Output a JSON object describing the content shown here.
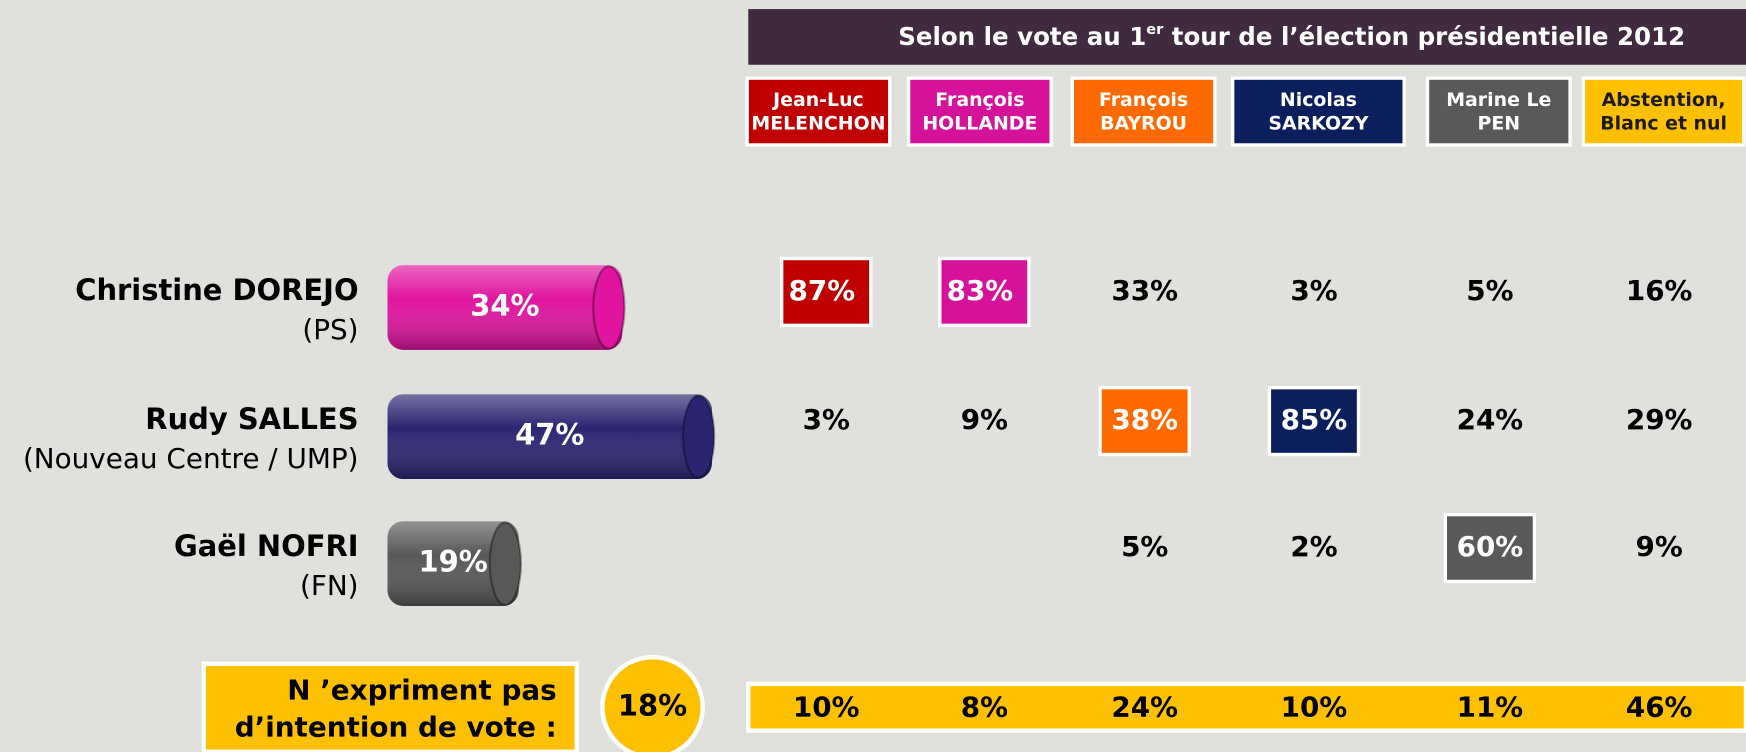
{
  "chart_data": {
    "type": "bar",
    "categories": [
      "Christine DOREJO",
      "Rudy SALLES",
      "Gaël NOFRI"
    ],
    "parties": [
      "(PS)",
      "(Nouveau Centre / UMP)",
      "(FN)"
    ],
    "values": [
      34,
      47,
      19
    ],
    "value_labels": [
      "34%",
      "47%",
      "19%"
    ],
    "colors": [
      "#e0149f",
      "#2b2571",
      "#585858"
    ]
  },
  "table": {
    "title": [
      "Selon le vote au 1",
      "er",
      " tour de l’élection présidentielle 2012"
    ],
    "columns": [
      {
        "label": [
          "Jean-Luc",
          "MELENCHON"
        ],
        "color": "#c00000",
        "text_color": "#ffffff"
      },
      {
        "label": [
          "François",
          "HOLLANDE"
        ],
        "color": "#d6129a",
        "text_color": "#ffffff"
      },
      {
        "label": [
          "François",
          "BAYROU"
        ],
        "color": "#ff6a00",
        "text_color": "#ffffff"
      },
      {
        "label": [
          "Nicolas",
          "SARKOZY"
        ],
        "color": "#0b1f5c",
        "text_color": "#ffffff"
      },
      {
        "label": [
          "Marine Le",
          "PEN"
        ],
        "color": "#595959",
        "text_color": "#ffffff"
      },
      {
        "label": [
          "Abstention,",
          "Blanc et nul"
        ],
        "color": "#ffc000",
        "text_color": "#1a1a1a"
      }
    ],
    "rows": [
      [
        "87%",
        "83%",
        "33%",
        "3%",
        "5%",
        "16%"
      ],
      [
        "3%",
        "9%",
        "38%",
        "85%",
        "24%",
        "29%"
      ],
      [
        null,
        null,
        "5%",
        "2%",
        "60%",
        "9%"
      ]
    ],
    "highlight": [
      [
        true,
        true,
        false,
        false,
        false,
        false
      ],
      [
        false,
        false,
        true,
        true,
        false,
        false
      ],
      [
        false,
        false,
        false,
        false,
        true,
        false
      ]
    ],
    "no_intention": {
      "label": [
        "N ’expriment pas",
        "d’intention de vote :"
      ],
      "total": "18%",
      "values": [
        "10%",
        "8%",
        "24%",
        "10%",
        "11%",
        "46%"
      ]
    }
  }
}
